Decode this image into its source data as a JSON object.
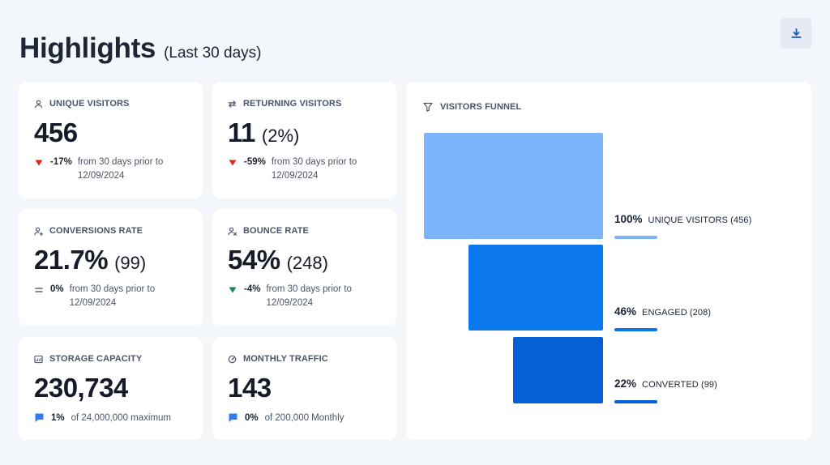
{
  "header": {
    "title": "Highlights",
    "subtitle": "(Last 30 days)"
  },
  "toolbar": {
    "download_icon": "download-icon"
  },
  "cards": {
    "unique_visitors": {
      "icon": "user-icon",
      "label": "UNIQUE VISITORS",
      "value": "456",
      "trend": "down",
      "trend_color": "#e02424",
      "delta": "-17%",
      "delta_desc": "from 30 days prior to 12/09/2024"
    },
    "returning_visitors": {
      "icon": "repeat-icon",
      "label": "RETURNING VISITORS",
      "value": "11",
      "sub": "(2%)",
      "trend": "down",
      "trend_color": "#e02424",
      "delta": "-59%",
      "delta_desc": "from 30 days prior to 12/09/2024"
    },
    "conversions_rate": {
      "icon": "user-check-icon",
      "label": "CONVERSIONS RATE",
      "value": "21.7%",
      "sub": "(99)",
      "trend": "equal",
      "trend_color": "#5b6475",
      "delta": "0%",
      "delta_desc": "from 30 days prior to 12/09/2024"
    },
    "bounce_rate": {
      "icon": "user-x-icon",
      "label": "BOUNCE RATE",
      "value": "54%",
      "sub": "(248)",
      "trend": "down",
      "trend_color": "#0e8a4e",
      "delta": "-4%",
      "delta_desc": "from 30 days prior to 12/09/2024"
    },
    "storage_capacity": {
      "icon": "storage-icon",
      "label": "STORAGE CAPACITY",
      "value": "230,734",
      "foot_icon": "chat-bubble-icon",
      "foot_pct": "1%",
      "foot_desc": "of 24,000,000 maximum"
    },
    "monthly_traffic": {
      "icon": "gauge-icon",
      "label": "MONTHLY TRAFFIC",
      "value": "143",
      "foot_icon": "chat-bubble-icon",
      "foot_pct": "0%",
      "foot_desc": "of 200,000 Monthly"
    }
  },
  "funnel": {
    "icon": "filter-icon",
    "title": "VISITORS FUNNEL",
    "stages": [
      {
        "pct": "100%",
        "label": "UNIQUE VISITORS (456)",
        "color": "#7cb4fb"
      },
      {
        "pct": "46%",
        "label": "ENGAGED (208)",
        "color": "#0b77ec"
      },
      {
        "pct": "22%",
        "label": "CONVERTED (99)",
        "color": "#0560d6"
      }
    ]
  },
  "colors": {
    "accent": "#1a73e8",
    "bubble": "#2f7ff0",
    "background": "#f3f6fb"
  }
}
